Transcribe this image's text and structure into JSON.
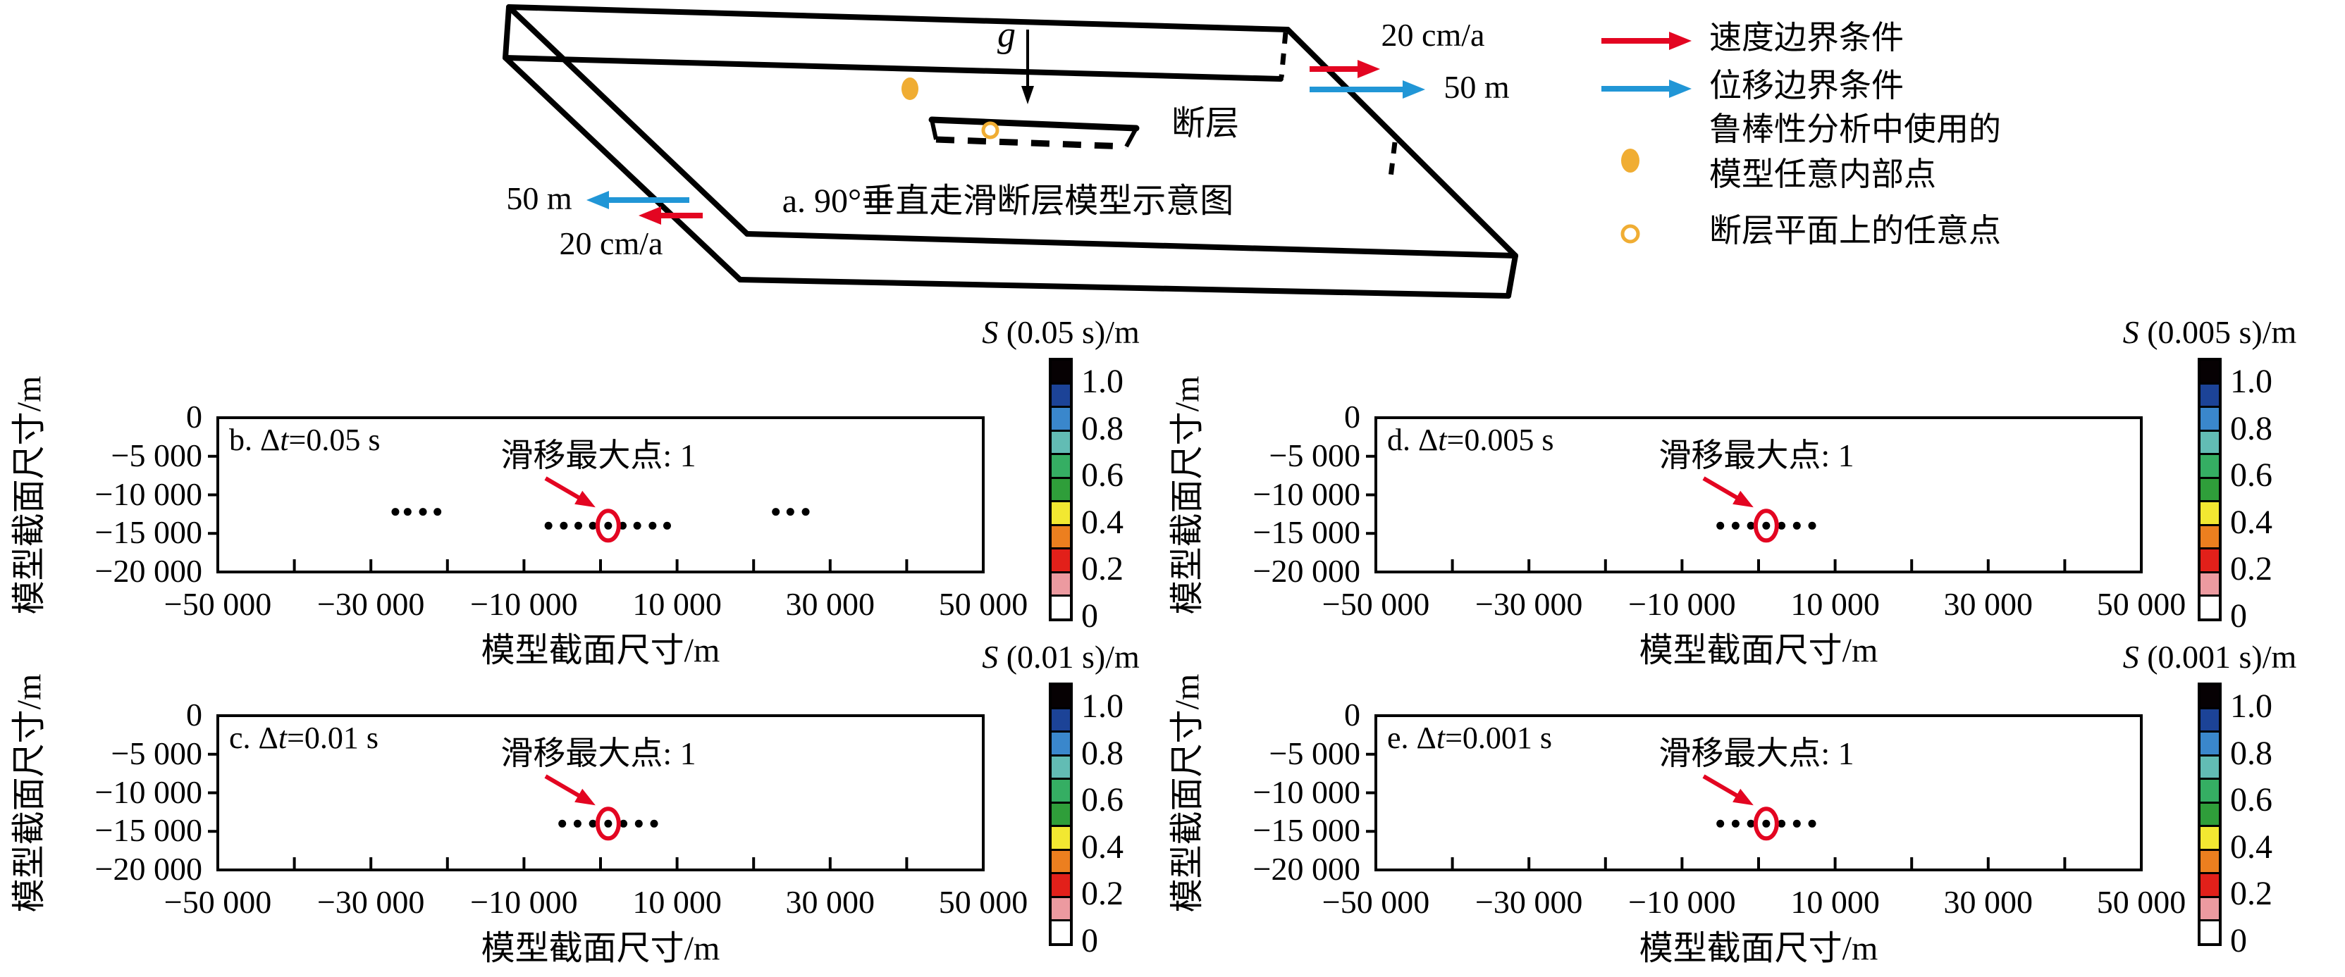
{
  "figure": {
    "background": "#ffffff",
    "colors": {
      "velocity_red": "#e30521",
      "displacement_blue": "#2196d6",
      "point_orange": "#f0ad33",
      "annotation_red": "#e30521",
      "axis_black": "#000000"
    },
    "diagram": {
      "caption": "a. 90°垂直走滑断层模型示意图",
      "gravity_symbol": "g",
      "fault_label": "断层",
      "right_velocity_label": "20 cm/a",
      "right_displacement_label": "50 m",
      "left_displacement_label": "50 m",
      "left_velocity_label": "20 cm/a"
    },
    "legend": {
      "items": [
        {
          "symbol": "red-arrow",
          "lines": [
            "速度边界条件"
          ]
        },
        {
          "symbol": "blue-arrow",
          "lines": [
            "位移边界条件"
          ]
        },
        {
          "symbol": "orange-filled-dot",
          "lines": [
            "鲁棒性分析中使用的",
            "模型任意内部点"
          ]
        },
        {
          "symbol": "orange-open-circle",
          "lines": [
            "断层平面上的任意点"
          ]
        }
      ]
    }
  },
  "colorbar": {
    "tick_labels": [
      "1.0",
      "0.8",
      "0.6",
      "0.4",
      "0.2",
      "0"
    ],
    "tick_values": [
      1.0,
      0.8,
      0.6,
      0.4,
      0.2,
      0
    ],
    "segment_value_span": 0.1,
    "segment_colors_bottom_to_top": [
      "#ffffff",
      "#ec9aa0",
      "#e2201a",
      "#ec7f1f",
      "#f2e831",
      "#2f9e3a",
      "#35ae63",
      "#62bcb4",
      "#3a87cc",
      "#1c4397",
      "#060103"
    ]
  },
  "chart_data": [
    {
      "id": "b",
      "type": "scatter",
      "panel_label": {
        "pre": "b. Δ",
        "var": "t",
        "rest": "=0.05 s"
      },
      "colorbar_title": {
        "var": "S",
        "rest": " (0.05 s)/m"
      },
      "xlabel": "模型截面尺寸/m",
      "ylabel": "模型截面尺寸/m",
      "xlim": [
        -50000,
        50000
      ],
      "ylim": [
        -20000,
        0
      ],
      "xtick_labels": [
        "−50 000",
        "−30 000",
        "−10 000",
        "10 000",
        "30 000",
        "50 000"
      ],
      "xtick_label_values": [
        -50000,
        -30000,
        -10000,
        10000,
        30000,
        50000
      ],
      "xtick_minor_step": 10000,
      "ytick_labels": [
        "0",
        "−5 000",
        "−10 000",
        "−15 000",
        "−20 000"
      ],
      "ytick_values": [
        0,
        -5000,
        -10000,
        -15000,
        -20000
      ],
      "series": [
        {
          "name": "fault-points-center-row",
          "y": -14000,
          "x": [
            -6800,
            -4800,
            -2900,
            -1000,
            1000,
            2900,
            4800,
            6800,
            8700
          ]
        },
        {
          "name": "scatter-left-cluster",
          "y": -12200,
          "x": [
            -26800,
            -25200,
            -23200,
            -21300
          ]
        },
        {
          "name": "scatter-right-cluster",
          "y": -12200,
          "x": [
            22900,
            24800,
            26800
          ]
        }
      ],
      "annotation": {
        "text": "滑移最大点: 1",
        "point_x": 1000,
        "point_y": -14000
      }
    },
    {
      "id": "d",
      "type": "scatter",
      "panel_label": {
        "pre": "d. Δ",
        "var": "t",
        "rest": "=0.005 s"
      },
      "colorbar_title": {
        "var": "S",
        "rest": " (0.005 s)/m"
      },
      "xlabel": "模型截面尺寸/m",
      "ylabel": "模型截面尺寸/m",
      "xlim": [
        -50000,
        50000
      ],
      "ylim": [
        -20000,
        0
      ],
      "xtick_labels": [
        "−50 000",
        "−30 000",
        "−10 000",
        "10 000",
        "30 000",
        "50 000"
      ],
      "xtick_label_values": [
        -50000,
        -30000,
        -10000,
        10000,
        30000,
        50000
      ],
      "xtick_minor_step": 10000,
      "ytick_labels": [
        "0",
        "−5 000",
        "−10 000",
        "−15 000",
        "−20 000"
      ],
      "ytick_values": [
        0,
        -5000,
        -10000,
        -15000,
        -20000
      ],
      "series": [
        {
          "name": "fault-points-center-row",
          "y": -14000,
          "x": [
            -5000,
            -3000,
            -1000,
            1000,
            3000,
            5000,
            7000
          ]
        }
      ],
      "annotation": {
        "text": "滑移最大点: 1",
        "point_x": 1000,
        "point_y": -14000
      }
    },
    {
      "id": "c",
      "type": "scatter",
      "panel_label": {
        "pre": "c. Δ",
        "var": "t",
        "rest": "=0.01 s"
      },
      "colorbar_title": {
        "var": "S",
        "rest": " (0.01 s)/m"
      },
      "xlabel": "模型截面尺寸/m",
      "ylabel": "模型截面尺寸/m",
      "xlim": [
        -50000,
        50000
      ],
      "ylim": [
        -20000,
        0
      ],
      "xtick_labels": [
        "−50 000",
        "−30 000",
        "−10 000",
        "10 000",
        "30 000",
        "50 000"
      ],
      "xtick_label_values": [
        -50000,
        -30000,
        -10000,
        10000,
        30000,
        50000
      ],
      "xtick_minor_step": 10000,
      "ytick_labels": [
        "0",
        "−5 000",
        "−10 000",
        "−15 000",
        "−20 000"
      ],
      "ytick_values": [
        0,
        -5000,
        -10000,
        -15000,
        -20000
      ],
      "series": [
        {
          "name": "fault-points-center-row",
          "y": -14000,
          "x": [
            -5000,
            -3000,
            -1000,
            1000,
            3000,
            5000,
            7000
          ]
        }
      ],
      "annotation": {
        "text": "滑移最大点: 1",
        "point_x": 1000,
        "point_y": -14000
      }
    },
    {
      "id": "e",
      "type": "scatter",
      "panel_label": {
        "pre": "e. Δ",
        "var": "t",
        "rest": "=0.001 s"
      },
      "colorbar_title": {
        "var": "S",
        "rest": " (0.001 s)/m"
      },
      "xlabel": "模型截面尺寸/m",
      "ylabel": "模型截面尺寸/m",
      "xlim": [
        -50000,
        50000
      ],
      "ylim": [
        -20000,
        0
      ],
      "xtick_labels": [
        "−50 000",
        "−30 000",
        "−10 000",
        "10 000",
        "30 000",
        "50 000"
      ],
      "xtick_label_values": [
        -50000,
        -30000,
        -10000,
        10000,
        30000,
        50000
      ],
      "xtick_minor_step": 10000,
      "ytick_labels": [
        "0",
        "−5 000",
        "−10 000",
        "−15 000",
        "−20 000"
      ],
      "ytick_values": [
        0,
        -5000,
        -10000,
        -15000,
        -20000
      ],
      "series": [
        {
          "name": "fault-points-center-row",
          "y": -14000,
          "x": [
            -5000,
            -3000,
            -1000,
            1000,
            3000,
            5000,
            7000
          ]
        }
      ],
      "annotation": {
        "text": "滑移最大点: 1",
        "point_x": 1000,
        "point_y": -14000
      }
    }
  ]
}
